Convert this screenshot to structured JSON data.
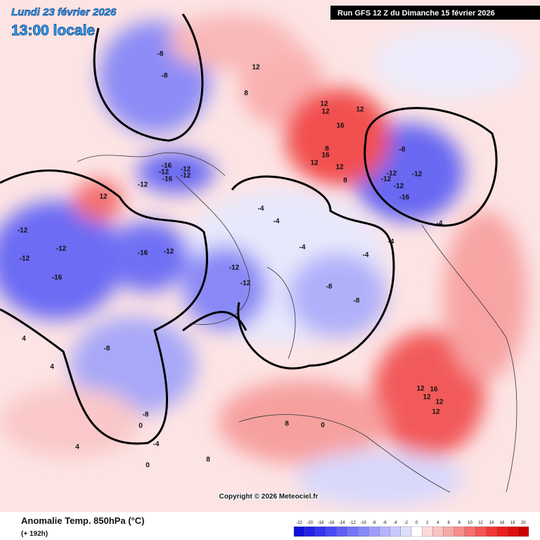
{
  "header": {
    "date_line": "Lundi 23 février 2026",
    "time_line": "13:00 locale",
    "run": "Run GFS 12 Z du Dimanche 15 février 2026"
  },
  "footer": {
    "title": "Anomalie Temp. 850hPa (°C)",
    "lead": "(+ 192h)",
    "copyright": "Copyright © 2026 Meteociel.fr"
  },
  "legend": {
    "ticks": [
      -22,
      -20,
      -18,
      -16,
      -14,
      -12,
      -10,
      -8,
      -6,
      -4,
      -2,
      0,
      2,
      4,
      6,
      8,
      10,
      12,
      14,
      16,
      18,
      20
    ],
    "colors": [
      "#1010d8",
      "#2222e8",
      "#3434f2",
      "#4a4af6",
      "#5e5ef7",
      "#7474f8",
      "#8888f8",
      "#9e9efa",
      "#b4b4fb",
      "#c8c8fc",
      "#dedefd",
      "#ffffff",
      "#fddada",
      "#fbc4c4",
      "#f9a8a8",
      "#f78c8c",
      "#f57070",
      "#f35454",
      "#f03838",
      "#ec2020",
      "#e01010",
      "#cc0000"
    ]
  },
  "map": {
    "labels": [
      -8,
      -8,
      12,
      8,
      12,
      12,
      16,
      12,
      8,
      16,
      12,
      12,
      8,
      -8,
      -12,
      -12,
      -12,
      -12,
      -16,
      -16,
      -12,
      -12,
      -16,
      -12,
      -12,
      12,
      -12,
      -12,
      -12,
      -16,
      -16,
      -12,
      -4,
      -4,
      -4,
      -12,
      -12,
      -8,
      -8,
      12,
      16,
      12,
      12,
      12,
      8,
      0,
      4,
      8,
      0,
      0,
      4,
      4,
      -8,
      -8,
      -4,
      -4,
      -4,
      -4
    ]
  }
}
